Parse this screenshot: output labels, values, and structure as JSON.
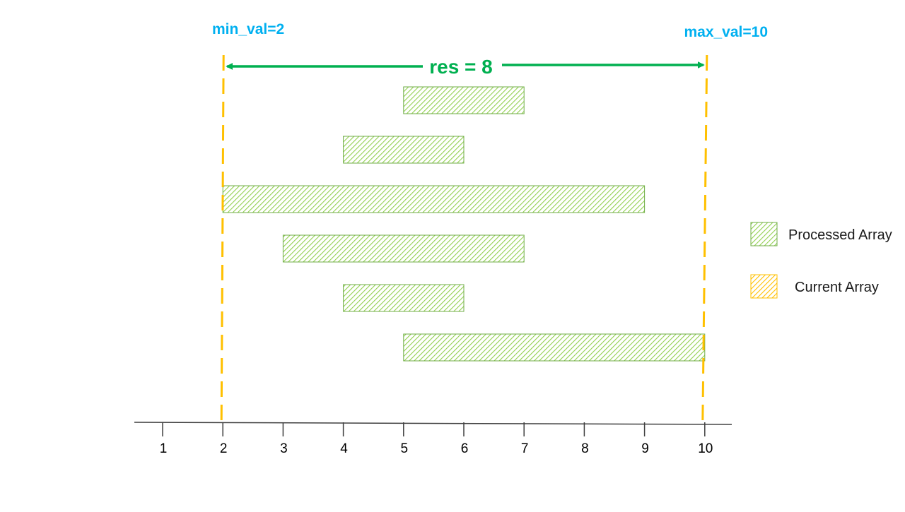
{
  "colors": {
    "processed_fill": "#92d050",
    "processed_stroke": "#70ad47",
    "current_fill": "#ffc000",
    "current_stroke": "#ffc000",
    "bound_label": "#00b0f0",
    "res": "#00b050",
    "axis": "#404040"
  },
  "labels": {
    "min": "min_val=2",
    "max": "max_val=10",
    "res": "res = 8"
  },
  "legend": {
    "processed": "Processed Array",
    "current": "Current Array"
  },
  "chart_data": {
    "type": "diagram",
    "x_ticks": [
      "1",
      "2",
      "3",
      "4",
      "5",
      "6",
      "7",
      "8",
      "9",
      "10"
    ],
    "xlim": [
      1,
      10
    ],
    "min_val": 2,
    "max_val": 10,
    "res": 8,
    "intervals": [
      {
        "start": 5,
        "end": 7
      },
      {
        "start": 4,
        "end": 6
      },
      {
        "start": 2,
        "end": 9
      },
      {
        "start": 3,
        "end": 7
      },
      {
        "start": 4,
        "end": 6
      },
      {
        "start": 5,
        "end": 10
      }
    ]
  }
}
